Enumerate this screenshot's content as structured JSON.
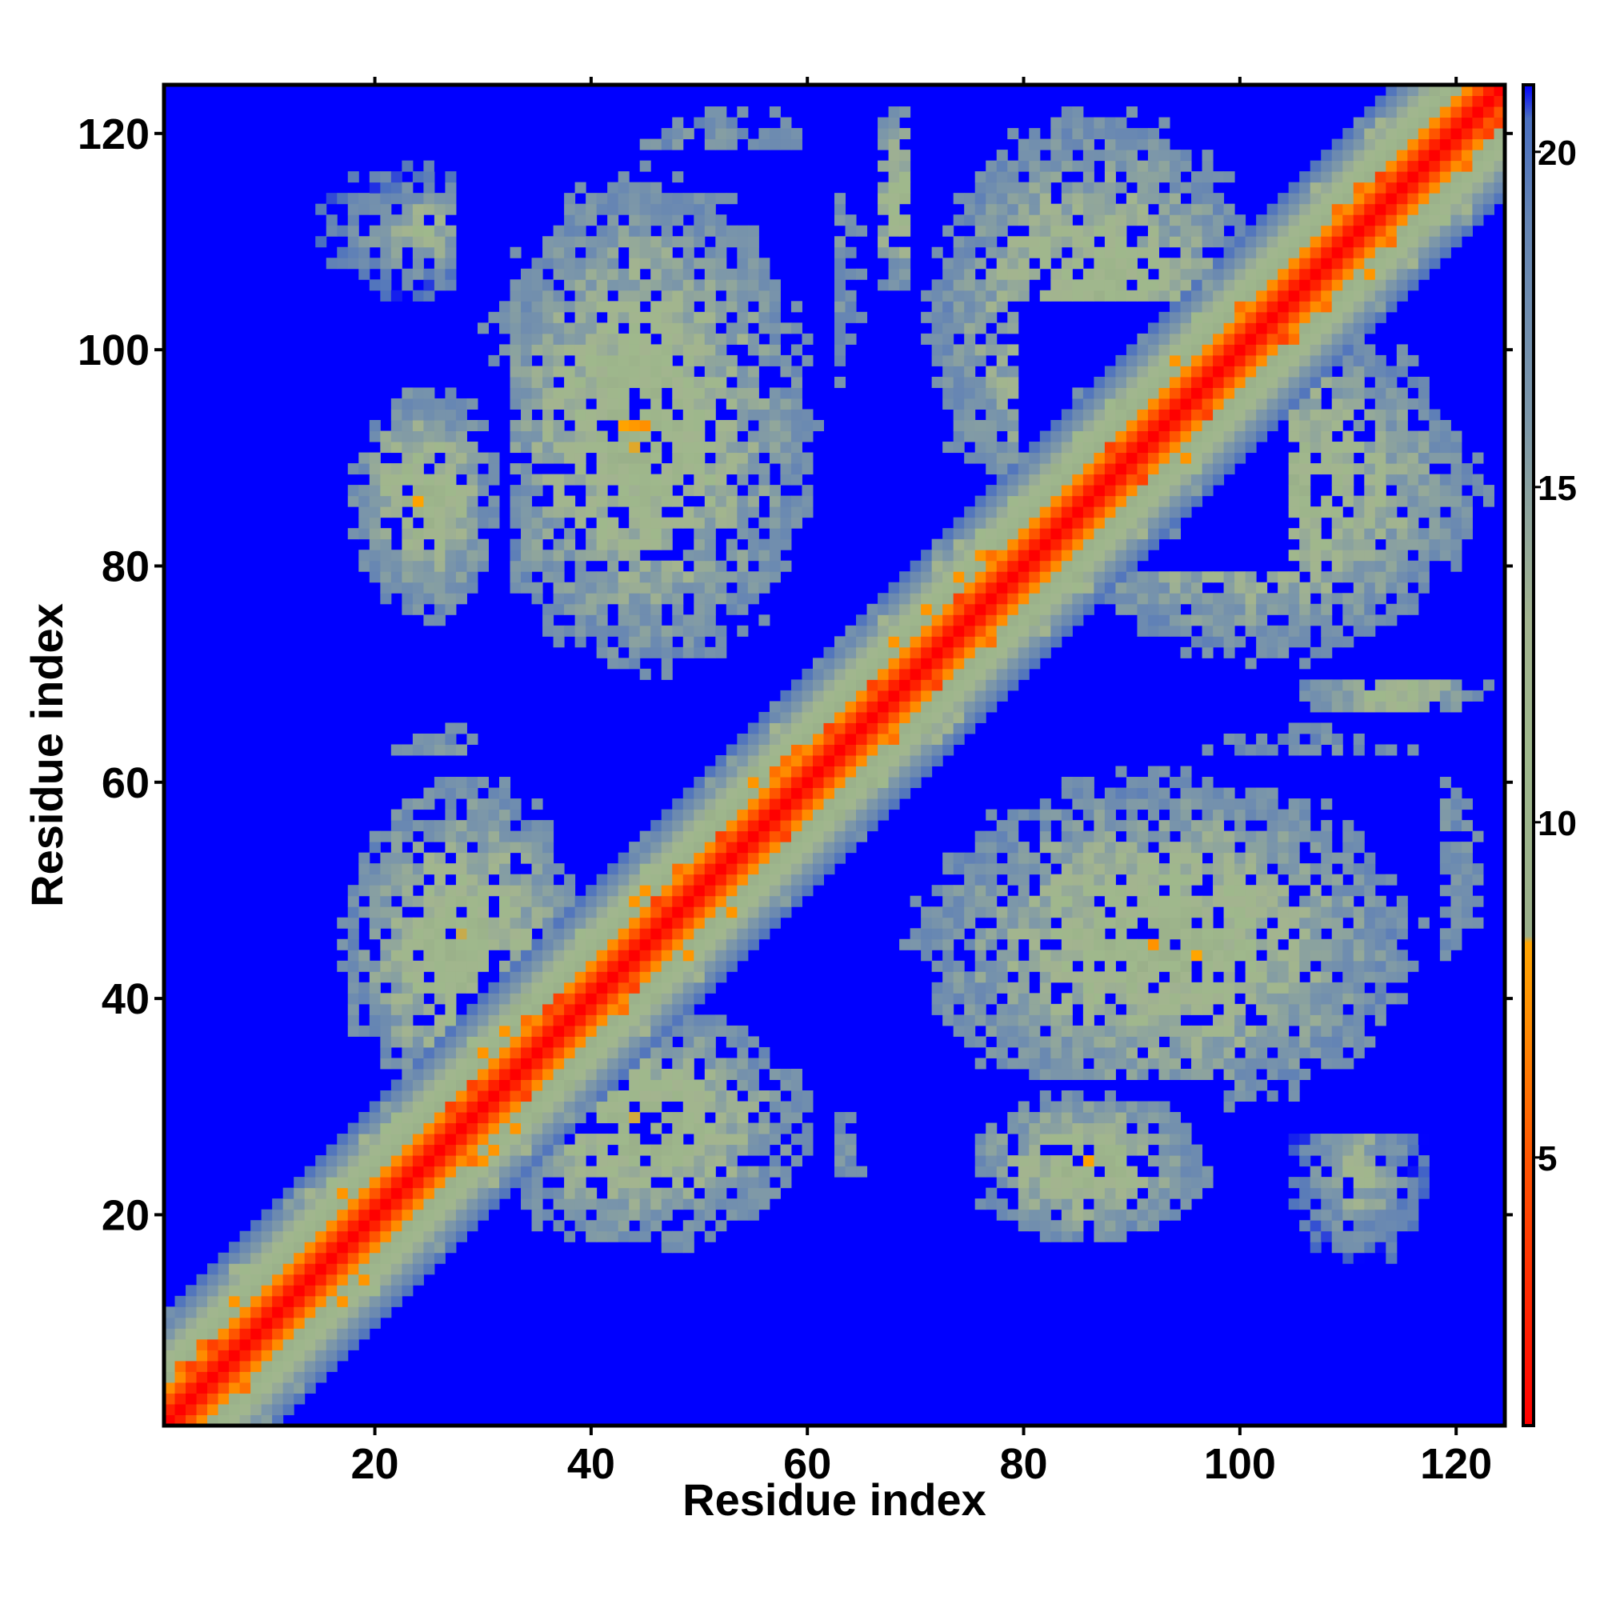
{
  "chart_data": {
    "type": "heatmap",
    "xlabel": "Residue index",
    "ylabel": "Residue index",
    "xlim": [
      1,
      124
    ],
    "ylim": [
      1,
      124
    ],
    "n_residues": 124,
    "x_ticks": [
      20,
      40,
      60,
      80,
      100,
      120
    ],
    "y_ticks": [
      20,
      40,
      60,
      80,
      100,
      120
    ],
    "colorbar": {
      "range": [
        1,
        21
      ],
      "ticks": [
        5,
        10,
        15,
        20
      ],
      "stops": [
        {
          "value": 1,
          "color": "#ff0000"
        },
        {
          "value": 3,
          "color": "#ff2a00"
        },
        {
          "value": 5,
          "color": "#ff5500"
        },
        {
          "value": 7,
          "color": "#ff8c00"
        },
        {
          "value": 8.2,
          "color": "#ffa500"
        },
        {
          "value": 8.3,
          "color": "#9aaf8a"
        },
        {
          "value": 11,
          "color": "#9fb88c"
        },
        {
          "value": 13,
          "color": "#a3b48f"
        },
        {
          "value": 16,
          "color": "#7c97a9"
        },
        {
          "value": 19,
          "color": "#6484b4"
        },
        {
          "value": 20.5,
          "color": "#4a6fc0"
        },
        {
          "value": 21,
          "color": "#0000ff"
        }
      ]
    },
    "background_value": 21,
    "diagonal_profile": [
      {
        "offset": 0,
        "value": 1
      },
      {
        "offset": 1,
        "value": 2.5
      },
      {
        "offset": 2,
        "value": 5
      },
      {
        "offset": 3,
        "value": 7
      },
      {
        "offset": 4,
        "value": 9
      },
      {
        "offset": 5,
        "value": 10.5
      },
      {
        "offset": 6,
        "value": 12
      },
      {
        "offset": 7,
        "value": 14
      },
      {
        "offset": 8,
        "value": 16
      },
      {
        "offset": 9,
        "value": 18
      },
      {
        "offset": 10,
        "value": 20
      }
    ],
    "contact_regions": [
      {
        "x": [
          74,
          98
        ],
        "y": [
          17,
          32
        ],
        "min_value": 6
      },
      {
        "x": [
          28,
          62
        ],
        "y": [
          68,
          118
        ],
        "min_value": 6
      },
      {
        "x": [
          16,
          40
        ],
        "y": [
          28,
          62
        ],
        "min_value": 6
      },
      {
        "x": [
          88,
          124
        ],
        "y": [
          38,
          66
        ],
        "min_value": 6
      },
      {
        "x": [
          70,
          104
        ],
        "y": [
          80,
          124
        ],
        "min_value": 6
      },
      {
        "x": [
          104,
          124
        ],
        "y": [
          58,
          90
        ],
        "min_value": 6
      },
      {
        "x": [
          38,
          66
        ],
        "y": [
          18,
          34
        ],
        "min_value": 6
      },
      {
        "x": [
          52,
          66
        ],
        "y": [
          104,
          124
        ],
        "min_value": 7
      },
      {
        "x": [
          104,
          118
        ],
        "y": [
          14,
          34
        ],
        "min_value": 9
      }
    ]
  }
}
